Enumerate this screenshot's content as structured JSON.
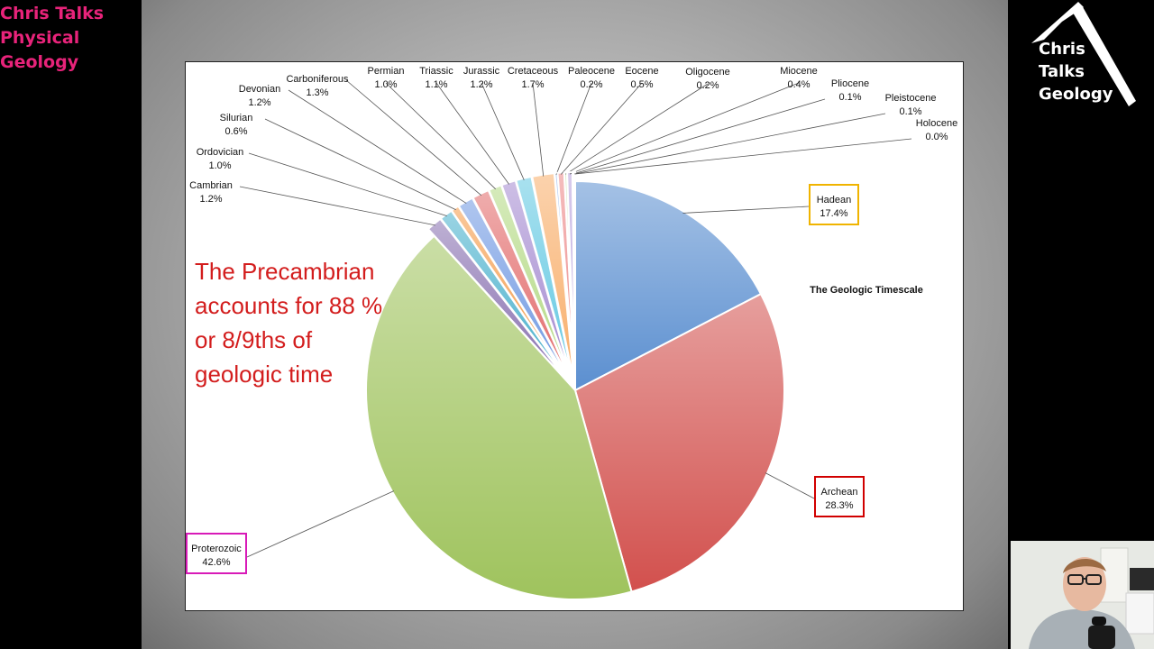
{
  "channel": {
    "title_lines": [
      "Chris Talks",
      "Physical",
      "Geology"
    ],
    "logo_lines": [
      "Chris",
      "Talks",
      "Geology"
    ]
  },
  "slide": {
    "text_lines": [
      "The Precambrian",
      "accounts for 88 %",
      "or 8/9ths of",
      "geologic time"
    ]
  },
  "colors": {
    "title": "#e8237a",
    "slide_text": "#d31d1d",
    "hadean_box": "#f0b400",
    "archean_box": "#d10000",
    "proterozoic_box": "#d81ab8"
  },
  "chart_data": {
    "type": "pie",
    "title": "The Geologic Timescale",
    "unit": "%",
    "slices": [
      {
        "label": "Hadean",
        "value": 17.4,
        "label_text": "17.4%",
        "color": "#5b8fd0"
      },
      {
        "label": "Archean",
        "value": 28.3,
        "label_text": "28.3%",
        "color": "#d2504d"
      },
      {
        "label": "Proterozoic",
        "value": 42.6,
        "label_text": "42.6%",
        "color": "#9fc35d"
      },
      {
        "label": "Cambrian",
        "value": 1.2,
        "label_text": "1.2%",
        "color": "#8870b0"
      },
      {
        "label": "Ordovician",
        "value": 1.0,
        "label_text": "1.0%",
        "color": "#48b0cc"
      },
      {
        "label": "Silurian",
        "value": 0.6,
        "label_text": "0.6%",
        "color": "#f49a48"
      },
      {
        "label": "Devonian",
        "value": 1.2,
        "label_text": "1.2%",
        "color": "#6f98e2"
      },
      {
        "label": "Carboniferous",
        "value": 1.3,
        "label_text": "1.3%",
        "color": "#e26a6a"
      },
      {
        "label": "Permian",
        "value": 1.0,
        "label_text": "1.0%",
        "color": "#b3d983"
      },
      {
        "label": "Triassic",
        "value": 1.1,
        "label_text": "1.1%",
        "color": "#a48ad0"
      },
      {
        "label": "Jurassic",
        "value": 1.2,
        "label_text": "1.2%",
        "color": "#62c8e2"
      },
      {
        "label": "Cretaceous",
        "value": 1.7,
        "label_text": "1.7%",
        "color": "#f8ae6a"
      },
      {
        "label": "Paleocene",
        "value": 0.2,
        "label_text": "0.2%",
        "color": "#7ea8ea"
      },
      {
        "label": "Eocene",
        "value": 0.5,
        "label_text": "0.5%",
        "color": "#ec8888"
      },
      {
        "label": "Oligocene",
        "value": 0.2,
        "label_text": "0.2%",
        "color": "#c4e09e"
      },
      {
        "label": "Miocene",
        "value": 0.4,
        "label_text": "0.4%",
        "color": "#b8a2dc"
      },
      {
        "label": "Pliocene",
        "value": 0.1,
        "label_text": "0.1%",
        "color": "#88d6ea"
      },
      {
        "label": "Pleistocene",
        "value": 0.1,
        "label_text": "0.1%",
        "color": "#fbc488"
      },
      {
        "label": "Holocene",
        "value": 0.0,
        "label_text": "0.0%",
        "color": "#9cbcf0"
      }
    ],
    "highlighted": [
      "Hadean",
      "Archean",
      "Proterozoic"
    ]
  }
}
